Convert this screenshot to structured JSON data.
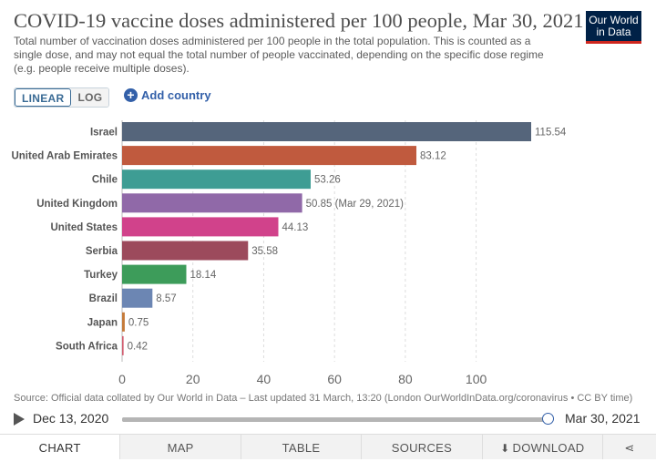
{
  "header": {
    "title": "COVID-19 vaccine doses administered per 100 people, Mar 30, 2021",
    "subtitle": "Total number of vaccination doses administered per 100 people in the total population. This is counted as a single dose, and may not equal the total number of people vaccinated, depending on the specific dose regime (e.g. people receive multiple doses).",
    "logo_line1": "Our World",
    "logo_line2": "in Data"
  },
  "controls": {
    "linear_label": "LINEAR",
    "log_label": "LOG",
    "add_country_label": "Add country"
  },
  "chart_data": {
    "type": "bar",
    "orientation": "horizontal",
    "categories": [
      "Israel",
      "United Arab Emirates",
      "Chile",
      "United Kingdom",
      "United States",
      "Serbia",
      "Turkey",
      "Brazil",
      "Japan",
      "South Africa"
    ],
    "values": [
      115.54,
      83.12,
      53.26,
      50.85,
      44.13,
      35.58,
      18.14,
      8.57,
      0.75,
      0.42
    ],
    "value_labels": [
      "115.54",
      "83.12",
      "53.26",
      "50.85 (Mar 29, 2021)",
      "44.13",
      "35.58",
      "18.14",
      "8.57",
      "0.75",
      "0.42"
    ],
    "colors": [
      "#55657b",
      "#c05a3e",
      "#3e9d94",
      "#9069a8",
      "#d1428b",
      "#9c4a5c",
      "#3d9c5a",
      "#6c86b3",
      "#c57a3a",
      "#d15c6f"
    ],
    "xlim": [
      0,
      115.54
    ],
    "xticks": [
      0,
      20,
      40,
      60,
      80,
      100
    ],
    "grid": true
  },
  "footer": {
    "source": "Source: Official data collated by Our World in Data – Last updated 31 March, 13:20 (London  OurWorldInData.org/coronavirus • CC BY time)"
  },
  "timeline": {
    "start_label": "Dec 13, 2020",
    "end_label": "Mar 30, 2021"
  },
  "tabs": [
    {
      "label": "CHART"
    },
    {
      "label": "MAP"
    },
    {
      "label": "TABLE"
    },
    {
      "label": "SOURCES"
    },
    {
      "label": "DOWNLOAD"
    }
  ]
}
